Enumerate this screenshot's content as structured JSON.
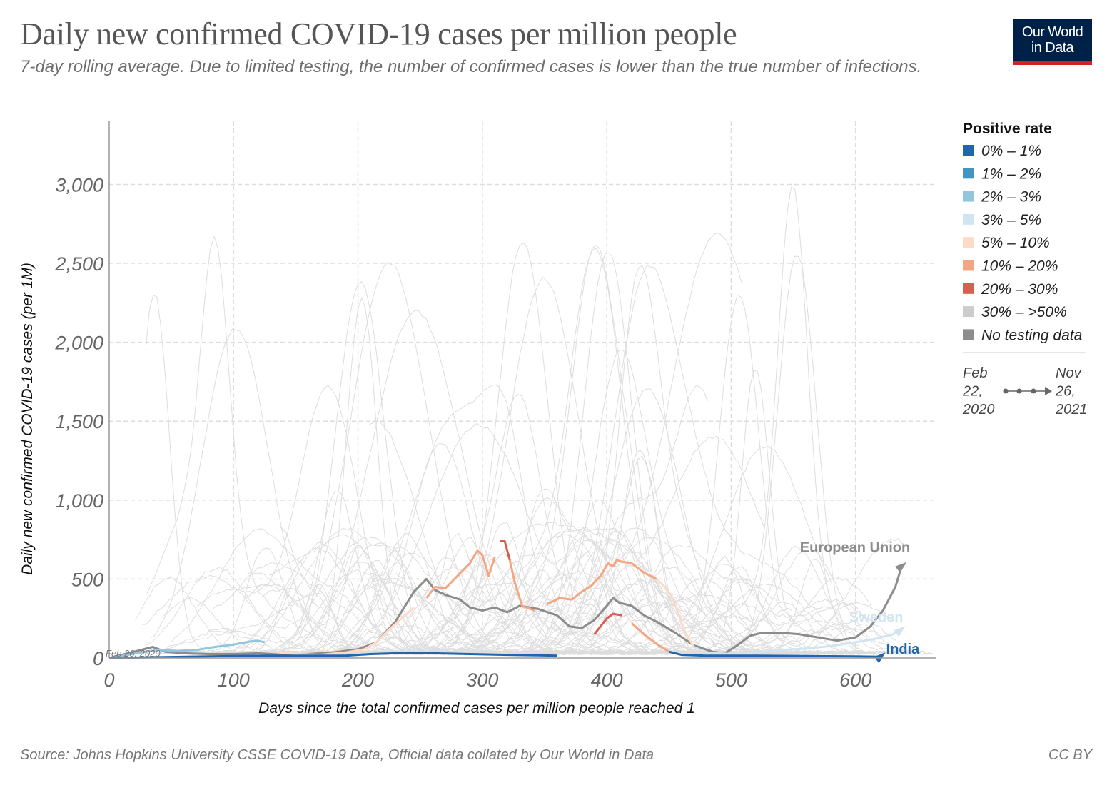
{
  "header": {
    "title": "Daily new confirmed COVID-19 cases per million people",
    "subtitle": "7-day rolling average. Due to limited testing, the number of confirmed cases is lower than the true number of infections."
  },
  "logo": {
    "line1": "Our World",
    "line2": "in Data"
  },
  "footer": {
    "source": "Source: Johns Hopkins University CSSE COVID-19 Data, Official data collated by Our World in Data",
    "license": "CC BY"
  },
  "colors": {
    "bin_0_1": "#2166ac",
    "bin_1_2": "#4393c3",
    "bin_2_3": "#92c5de",
    "bin_3_5": "#d1e5f0",
    "bin_5_10": "#fddbc7",
    "bin_10_20": "#f4a582",
    "bin_20_30": "#d6604d",
    "bin_30_50": "#cccccc",
    "no_data": "#8c8c8c",
    "background_lines": "#dddddd",
    "grid": "#dddddd"
  },
  "chart_data": {
    "type": "line",
    "title": "Daily new confirmed COVID-19 cases per million people",
    "subtitle": "7-day rolling average. Due to limited testing, the number of confirmed cases is lower than the true number of infections.",
    "xlabel": "Days since the total confirmed cases per million people reached 1",
    "ylabel": "Daily new confirmed COVID-19 cases (per 1M)",
    "xlim": [
      0,
      665
    ],
    "ylim": [
      0,
      3400
    ],
    "x_ticks": [
      0,
      100,
      200,
      300,
      400,
      500,
      600
    ],
    "x_tick_labels": [
      "0",
      "100",
      "200",
      "300",
      "400",
      "500",
      "600"
    ],
    "y_ticks": [
      0,
      500,
      1000,
      1500,
      2000,
      2500,
      3000
    ],
    "y_tick_labels": [
      "0",
      "500",
      "1,000",
      "1,500",
      "2,000",
      "2,500",
      "3,000"
    ],
    "grid": true,
    "legend_position": "right",
    "start_annotation": "Feb 26, 2020",
    "legend": {
      "title": "Positive rate",
      "items": [
        {
          "label": "0% – 1%",
          "color_key": "bin_0_1"
        },
        {
          "label": "1% – 2%",
          "color_key": "bin_1_2"
        },
        {
          "label": "2% – 3%",
          "color_key": "bin_2_3"
        },
        {
          "label": "3% – 5%",
          "color_key": "bin_3_5"
        },
        {
          "label": "5% – 10%",
          "color_key": "bin_5_10"
        },
        {
          "label": "10% – 20%",
          "color_key": "bin_10_20"
        },
        {
          "label": "20% – 30%",
          "color_key": "bin_20_30"
        },
        {
          "label": "30% – >50%",
          "color_key": "bin_30_50",
          "faded": true
        },
        {
          "label": "No testing data",
          "color_key": "no_data"
        }
      ],
      "time_range": {
        "start": [
          "Feb",
          "22,",
          "2020"
        ],
        "end": [
          "Nov",
          "26,",
          "2021"
        ]
      }
    },
    "series": [
      {
        "name": "European Union",
        "label_color_key": "no_data",
        "points": [
          [
            0,
            0
          ],
          [
            10,
            20
          ],
          [
            20,
            40
          ],
          [
            35,
            70
          ],
          [
            45,
            40
          ],
          [
            60,
            30
          ],
          [
            80,
            25
          ],
          [
            100,
            25
          ],
          [
            120,
            30
          ],
          [
            140,
            20
          ],
          [
            160,
            25
          ],
          [
            180,
            35
          ],
          [
            200,
            55
          ],
          [
            215,
            100
          ],
          [
            230,
            230
          ],
          [
            245,
            420
          ],
          [
            255,
            500
          ],
          [
            262,
            430
          ],
          [
            270,
            400
          ],
          [
            282,
            370
          ],
          [
            290,
            320
          ],
          [
            300,
            300
          ],
          [
            310,
            320
          ],
          [
            320,
            290
          ],
          [
            330,
            330
          ],
          [
            345,
            310
          ],
          [
            360,
            270
          ],
          [
            370,
            200
          ],
          [
            380,
            190
          ],
          [
            390,
            240
          ],
          [
            400,
            330
          ],
          [
            405,
            380
          ],
          [
            410,
            350
          ],
          [
            420,
            330
          ],
          [
            430,
            270
          ],
          [
            440,
            230
          ],
          [
            455,
            160
          ],
          [
            470,
            80
          ],
          [
            485,
            40
          ],
          [
            495,
            30
          ],
          [
            505,
            80
          ],
          [
            515,
            140
          ],
          [
            525,
            160
          ],
          [
            540,
            160
          ],
          [
            555,
            150
          ],
          [
            570,
            130
          ],
          [
            585,
            110
          ],
          [
            600,
            130
          ],
          [
            612,
            200
          ],
          [
            622,
            300
          ],
          [
            632,
            450
          ],
          [
            637,
            580
          ]
        ],
        "segments": [
          {
            "from": 0,
            "to": 637,
            "color_key": "no_data"
          }
        ]
      },
      {
        "name": "Sweden",
        "label_color_key": "bin_3_5",
        "points": [
          [
            0,
            0
          ],
          [
            15,
            20
          ],
          [
            25,
            35
          ],
          [
            40,
            50
          ],
          [
            55,
            45
          ],
          [
            70,
            50
          ],
          [
            85,
            70
          ],
          [
            100,
            85
          ],
          [
            110,
            100
          ],
          [
            118,
            110
          ],
          [
            125,
            100
          ],
          [
            135,
            40
          ],
          [
            150,
            25
          ],
          [
            170,
            20
          ],
          [
            190,
            35
          ],
          [
            205,
            55
          ],
          [
            215,
            100
          ],
          [
            225,
            180
          ],
          [
            235,
            250
          ],
          [
            245,
            320
          ],
          [
            255,
            380
          ],
          [
            262,
            450
          ],
          [
            270,
            440
          ],
          [
            280,
            520
          ],
          [
            290,
            600
          ],
          [
            296,
            680
          ],
          [
            300,
            650
          ],
          [
            305,
            520
          ],
          [
            310,
            640
          ],
          [
            314,
            740
          ],
          [
            318,
            740
          ],
          [
            322,
            620
          ],
          [
            326,
            480
          ],
          [
            332,
            330
          ],
          [
            342,
            300
          ],
          [
            352,
            340
          ],
          [
            362,
            380
          ],
          [
            372,
            370
          ],
          [
            380,
            420
          ],
          [
            388,
            460
          ],
          [
            395,
            520
          ],
          [
            401,
            600
          ],
          [
            405,
            580
          ],
          [
            408,
            620
          ],
          [
            412,
            610
          ],
          [
            420,
            600
          ],
          [
            430,
            540
          ],
          [
            440,
            500
          ],
          [
            448,
            440
          ],
          [
            455,
            340
          ],
          [
            462,
            180
          ],
          [
            470,
            70
          ],
          [
            480,
            35
          ],
          [
            500,
            25
          ],
          [
            520,
            35
          ],
          [
            540,
            50
          ],
          [
            560,
            60
          ],
          [
            580,
            75
          ],
          [
            600,
            100
          ],
          [
            615,
            120
          ],
          [
            630,
            150
          ],
          [
            636,
            175
          ]
        ],
        "segments": [
          {
            "from": 0,
            "to": 128,
            "color_key": "bin_2_3"
          },
          {
            "from": 128,
            "to": 215,
            "color_key": "bin_5_10"
          },
          {
            "from": 215,
            "to": 250,
            "color_key": "bin_5_10"
          },
          {
            "from": 250,
            "to": 312,
            "color_key": "bin_10_20"
          },
          {
            "from": 312,
            "to": 322,
            "color_key": "bin_20_30"
          },
          {
            "from": 322,
            "to": 350,
            "color_key": "bin_10_20"
          },
          {
            "from": 350,
            "to": 440,
            "color_key": "bin_10_20"
          },
          {
            "from": 440,
            "to": 470,
            "color_key": "bin_5_10"
          },
          {
            "from": 470,
            "to": 636,
            "color_key": "bin_3_5"
          }
        ]
      },
      {
        "name": "India",
        "label_color_key": "bin_0_1",
        "points": [
          [
            0,
            0
          ],
          [
            40,
            5
          ],
          [
            80,
            10
          ],
          [
            120,
            15
          ],
          [
            160,
            15
          ],
          [
            190,
            15
          ],
          [
            210,
            25
          ],
          [
            230,
            30
          ],
          [
            260,
            30
          ],
          [
            290,
            25
          ],
          [
            320,
            20
          ],
          [
            360,
            15
          ],
          [
            375,
            40
          ],
          [
            390,
            150
          ],
          [
            400,
            250
          ],
          [
            405,
            280
          ],
          [
            412,
            270
          ],
          [
            420,
            220
          ],
          [
            430,
            150
          ],
          [
            440,
            90
          ],
          [
            450,
            40
          ],
          [
            460,
            20
          ],
          [
            480,
            15
          ],
          [
            520,
            15
          ],
          [
            560,
            12
          ],
          [
            600,
            10
          ],
          [
            620,
            8
          ]
        ],
        "segments": [
          {
            "from": 0,
            "to": 370,
            "color_key": "bin_0_1"
          },
          {
            "from": 370,
            "to": 385,
            "color_key": "bin_10_20"
          },
          {
            "from": 385,
            "to": 415,
            "color_key": "bin_20_30"
          },
          {
            "from": 415,
            "to": 450,
            "color_key": "bin_10_20"
          },
          {
            "from": 450,
            "to": 620,
            "color_key": "bin_0_1"
          }
        ]
      }
    ]
  }
}
